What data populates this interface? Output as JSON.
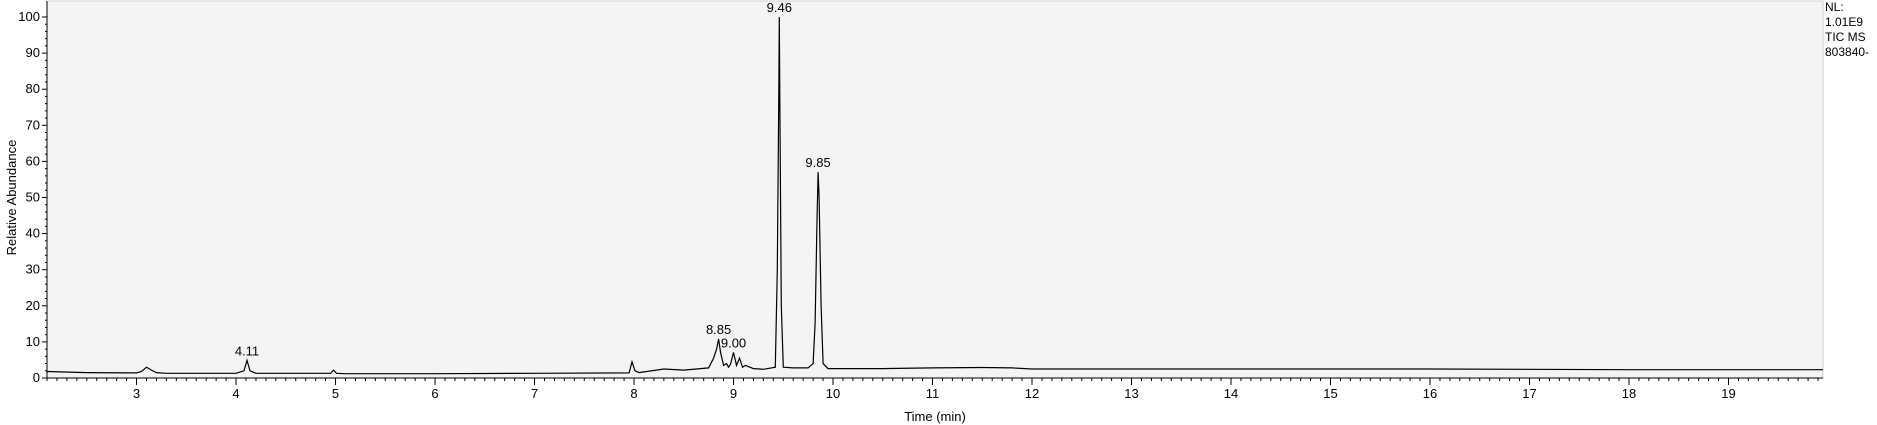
{
  "chart_data": {
    "type": "line",
    "title": "",
    "xlabel": "Time (min)",
    "ylabel": "Relative Abundance",
    "xlim": [
      2.1,
      19.95
    ],
    "ylim": [
      0,
      100
    ],
    "x_ticks": [
      3,
      4,
      5,
      6,
      7,
      8,
      9,
      10,
      11,
      12,
      13,
      14,
      15,
      16,
      17,
      18,
      19
    ],
    "y_ticks": [
      0,
      10,
      20,
      30,
      40,
      50,
      60,
      70,
      80,
      90,
      100
    ],
    "grid": false,
    "baseline": 1.6,
    "series": [
      {
        "x": [
          2.1,
          2.5,
          3.0,
          3.05,
          3.1,
          3.15,
          3.2,
          3.3,
          3.5,
          4.0,
          4.08,
          4.11,
          4.14,
          4.2,
          4.5,
          4.95,
          4.98,
          5.01,
          5.1,
          6.0,
          7.0,
          7.95,
          7.98,
          8.01,
          8.05,
          8.3,
          8.5,
          8.75,
          8.8,
          8.83,
          8.85,
          8.87,
          8.9,
          8.93,
          8.95,
          8.97,
          9.0,
          9.03,
          9.06,
          9.09,
          9.12,
          9.2,
          9.3,
          9.42,
          9.44,
          9.455,
          9.46,
          9.465,
          9.48,
          9.5,
          9.6,
          9.75,
          9.8,
          9.82,
          9.84,
          9.85,
          9.86,
          9.88,
          9.9,
          9.95,
          10.5,
          11.0,
          11.5,
          11.8,
          12.0,
          14.0,
          16.0,
          18.0,
          19.95
        ],
        "y": [
          1.8,
          1.5,
          1.4,
          1.8,
          3.0,
          2.2,
          1.5,
          1.3,
          1.3,
          1.3,
          2.0,
          4.9,
          2.0,
          1.3,
          1.3,
          1.3,
          2.2,
          1.3,
          1.2,
          1.2,
          1.3,
          1.4,
          4.5,
          2.0,
          1.5,
          2.5,
          2.2,
          2.8,
          5.5,
          8.0,
          10.8,
          7.0,
          3.5,
          4.0,
          3.0,
          3.8,
          7.1,
          3.5,
          5.5,
          3.0,
          3.5,
          2.6,
          2.4,
          3.0,
          30.0,
          79.0,
          100.0,
          78.0,
          20.0,
          3.0,
          2.8,
          2.8,
          4.0,
          15.0,
          45.0,
          57.0,
          50.0,
          20.0,
          4.0,
          2.6,
          2.6,
          2.8,
          2.9,
          2.8,
          2.5,
          2.5,
          2.5,
          2.3,
          2.3
        ]
      }
    ],
    "peak_labels": [
      {
        "x": 4.11,
        "y": 4.9,
        "text": "4.11"
      },
      {
        "x": 8.85,
        "y": 10.8,
        "text": "8.85"
      },
      {
        "x": 9.0,
        "y": 7.1,
        "text": "9.00"
      },
      {
        "x": 9.46,
        "y": 100.0,
        "text": "9.46"
      },
      {
        "x": 9.85,
        "y": 57.0,
        "text": "9.85"
      }
    ]
  },
  "info_panel": {
    "nl_label": "NL:",
    "nl_value": "1.01E9",
    "trace": "TIC  MS",
    "file": "803840-"
  },
  "colors": {
    "plot_background": "#f4f4f4",
    "trace": "#000000",
    "axis": "#000000"
  }
}
